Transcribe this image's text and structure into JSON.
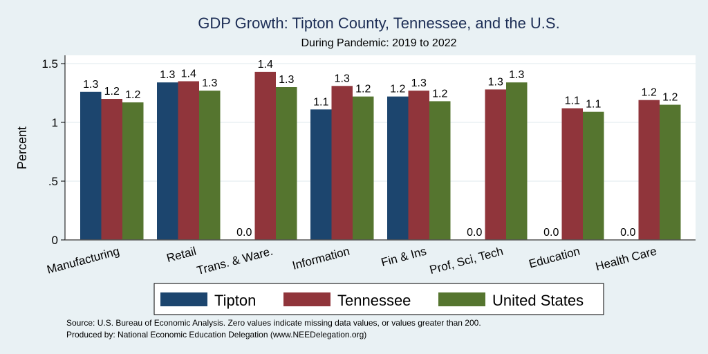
{
  "chart_data": {
    "type": "bar",
    "title": "GDP Growth: Tipton County, Tennessee, and the U.S.",
    "subtitle": "During Pandemic: 2019 to 2022",
    "xlabel": "",
    "ylabel": "Percent",
    "ylim": [
      0,
      1.6
    ],
    "yticks": [
      0,
      0.5,
      1,
      1.5
    ],
    "ytick_labels": [
      "0",
      ".5",
      "1",
      "1.5"
    ],
    "grid": true,
    "categories": [
      "Manufacturing",
      "Retail",
      "Trans. & Ware.",
      "Information",
      "Fin & Ins",
      "Prof, Sci, Tech",
      "Education",
      "Health Care"
    ],
    "series": [
      {
        "name": "Tipton",
        "color": "#1c456e",
        "values": [
          1.26,
          1.34,
          0.0,
          1.11,
          1.22,
          0.0,
          0.0,
          0.0
        ],
        "labels": [
          "1.3",
          "1.3",
          "0.0",
          "1.1",
          "1.2",
          "0.0",
          "0.0",
          "0.0"
        ]
      },
      {
        "name": "Tennessee",
        "color": "#90353b",
        "values": [
          1.2,
          1.35,
          1.43,
          1.31,
          1.27,
          1.28,
          1.12,
          1.19
        ],
        "labels": [
          "1.2",
          "1.4",
          "1.4",
          "1.3",
          "1.3",
          "1.3",
          "1.1",
          "1.2"
        ]
      },
      {
        "name": "United States",
        "color": "#55752f",
        "values": [
          1.17,
          1.27,
          1.3,
          1.22,
          1.18,
          1.34,
          1.09,
          1.15
        ],
        "labels": [
          "1.2",
          "1.3",
          "1.3",
          "1.2",
          "1.2",
          "1.3",
          "1.1",
          "1.2"
        ]
      }
    ],
    "legend_position": "bottom",
    "notes": [
      "Source: U.S. Bureau of Economic Analysis. Zero values indicate missing data values, or values greater than 200.",
      "Produced by: National Economic Education Delegation (www.NEEDelegation.org)"
    ]
  }
}
